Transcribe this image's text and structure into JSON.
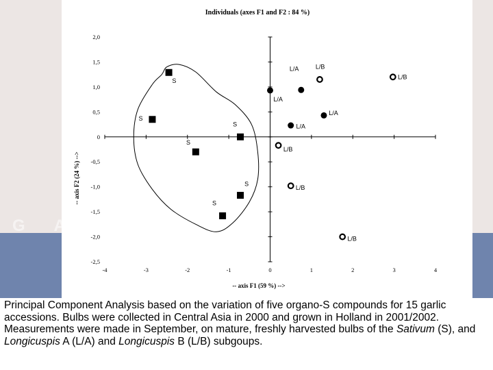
{
  "background": {
    "letters": "G A",
    "colors": {
      "top": "#ece6e4",
      "band": "#6f84ad"
    }
  },
  "chart_data": {
    "type": "scatter",
    "title": "Individuals (axes F1 and F2 : 84 %)",
    "xlabel": "-- axis F1 (59 %) -->",
    "ylabel": "-- axis F2 (24 %) -->",
    "xlim": [
      -4,
      4
    ],
    "ylim": [
      -2.5,
      2.0
    ],
    "x_ticks": [
      {
        "v": -4,
        "label": "-4"
      },
      {
        "v": -3,
        "label": "-3"
      },
      {
        "v": -2,
        "label": "-2"
      },
      {
        "v": -1,
        "label": "-1"
      },
      {
        "v": 0,
        "label": "0"
      },
      {
        "v": 1,
        "label": "1"
      },
      {
        "v": 2,
        "label": "2"
      },
      {
        "v": 3,
        "label": "3"
      },
      {
        "v": 4,
        "label": "4"
      }
    ],
    "y_ticks": [
      {
        "v": 2.0,
        "label": "2,0"
      },
      {
        "v": 1.5,
        "label": "1,5"
      },
      {
        "v": 1.0,
        "label": "1,0"
      },
      {
        "v": 0.5,
        "label": "0,5"
      },
      {
        "v": 0,
        "label": "0"
      },
      {
        "v": -0.5,
        "label": "-0,5"
      },
      {
        "v": -1.0,
        "label": "-1,0"
      },
      {
        "v": -1.5,
        "label": "-1,5"
      },
      {
        "v": -2.0,
        "label": "-2,0"
      },
      {
        "v": -2.5,
        "label": "-2,5"
      }
    ],
    "grid": false,
    "points": [
      {
        "x": -2.45,
        "y": 1.29,
        "label": "S",
        "group": "S",
        "lx": 0.08,
        "ly": -0.17
      },
      {
        "x": -2.85,
        "y": 0.35,
        "label": "S",
        "group": "S",
        "lx": -0.33,
        "ly": 0.02
      },
      {
        "x": -0.72,
        "y": 0.0,
        "label": "S",
        "group": "S",
        "lx": -0.18,
        "ly": 0.25
      },
      {
        "x": -1.8,
        "y": -0.3,
        "label": "S",
        "group": "S",
        "lx": -0.23,
        "ly": 0.19
      },
      {
        "x": -0.72,
        "y": -1.17,
        "label": "S",
        "group": "S",
        "lx": 0.1,
        "ly": 0.23
      },
      {
        "x": -1.15,
        "y": -1.58,
        "label": "S",
        "group": "S",
        "lx": -0.25,
        "ly": 0.25
      },
      {
        "x": 0.0,
        "y": 0.93,
        "label": "L/A",
        "group": "L/A",
        "lx": 0.08,
        "ly": -0.18
      },
      {
        "x": 0.75,
        "y": 0.94,
        "label": "L/A",
        "group": "L/A",
        "lx": -0.28,
        "ly": 0.42
      },
      {
        "x": 1.3,
        "y": 0.43,
        "label": "L/A",
        "group": "L/A",
        "lx": 0.12,
        "ly": 0.05
      },
      {
        "x": 0.5,
        "y": 0.23,
        "label": "L/A",
        "group": "L/A",
        "lx": 0.13,
        "ly": -0.02
      },
      {
        "x": 1.2,
        "y": 1.15,
        "label": "L/B",
        "group": "L/B",
        "lx": -0.1,
        "ly": 0.25
      },
      {
        "x": 2.97,
        "y": 1.2,
        "label": "L/B",
        "group": "L/B",
        "lx": 0.12,
        "ly": 0.0
      },
      {
        "x": 0.2,
        "y": -0.17,
        "label": "L/B",
        "group": "L/B",
        "lx": 0.12,
        "ly": -0.08
      },
      {
        "x": 0.5,
        "y": -0.98,
        "label": "L/B",
        "group": "L/B",
        "lx": 0.12,
        "ly": -0.04
      },
      {
        "x": 1.75,
        "y": -2.0,
        "label": "L/B",
        "group": "L/B",
        "lx": 0.12,
        "ly": -0.04
      }
    ],
    "enclosure": [
      [
        -2.62,
        1.25
      ],
      [
        -2.85,
        1.05
      ],
      [
        -3.2,
        0.55
      ],
      [
        -3.3,
        0.0
      ],
      [
        -3.2,
        -0.55
      ],
      [
        -2.85,
        -1.05
      ],
      [
        -2.4,
        -1.45
      ],
      [
        -1.8,
        -1.75
      ],
      [
        -1.3,
        -1.9
      ],
      [
        -0.9,
        -1.72
      ],
      [
        -0.5,
        -1.3
      ],
      [
        -0.3,
        -0.85
      ],
      [
        -0.3,
        -0.3
      ],
      [
        -0.45,
        0.25
      ],
      [
        -0.85,
        0.65
      ],
      [
        -1.3,
        0.9
      ],
      [
        -1.8,
        1.3
      ],
      [
        -2.2,
        1.45
      ],
      [
        -2.5,
        1.4
      ]
    ]
  },
  "caption": {
    "part1": "Principal Component Analysis based on the variation of five organo-S compounds for 15 garlic accessions. Bulbs were collected in Central Asia in 2000 and grown in Holland in 2001/2002. Measurements were made in September, on mature, freshly harvested bulbs of the ",
    "sativum": "Sativum",
    "part2": " (S), and ",
    "longA": "Longicuspis",
    "part3": " A (L/A) and ",
    "longB": "Longicuspis",
    "part4": " B (L/B) subgoups."
  }
}
